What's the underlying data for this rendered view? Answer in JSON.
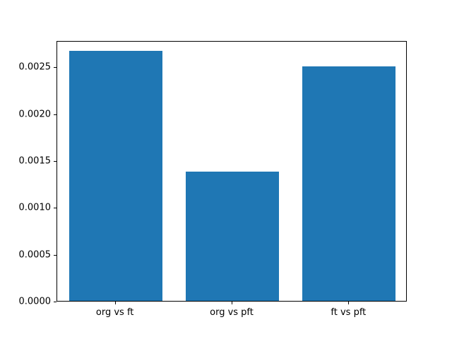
{
  "chart_data": {
    "type": "bar",
    "title": "",
    "xlabel": "",
    "ylabel": "",
    "categories": [
      "org vs ft",
      "org vs pft",
      "ft vs pft"
    ],
    "values": [
      0.00267,
      0.00138,
      0.0025
    ],
    "ylim": [
      0.0,
      0.00278
    ],
    "yticks": [
      0.0,
      0.0005,
      0.001,
      0.0015,
      0.002,
      0.0025
    ],
    "ytick_labels": [
      "0.0000",
      "0.0005",
      "0.0010",
      "0.0015",
      "0.0020",
      "0.0025"
    ],
    "bar_color": "#1f77b4",
    "bar_width_fraction": 0.8,
    "grid": false,
    "legend": "none",
    "background_color": "#ffffff",
    "axis_color": "#000000"
  }
}
